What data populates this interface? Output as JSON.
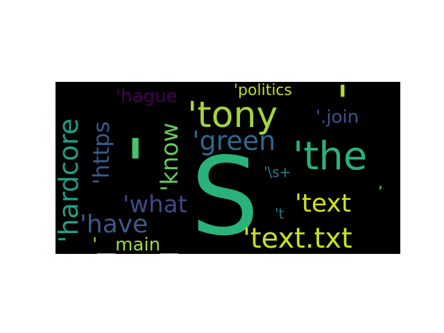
{
  "word_cloud": {
    "words": [
      {
        "text": "S",
        "color": "#2ab27b"
      },
      {
        "text": "'tony",
        "color": "#a4d53a"
      },
      {
        "text": "'the",
        "color": "#2bb07f"
      },
      {
        "text": "'",
        "color": "#47c16e"
      },
      {
        "text": "'",
        "color": "#b5de2b"
      },
      {
        "text": "'green",
        "color": "#31688e"
      },
      {
        "text": "'know",
        "color": "#65cb5e"
      },
      {
        "text": "'https",
        "color": "#365c8d"
      },
      {
        "text": "'hardcore",
        "color": "#1fa187"
      },
      {
        "text": "'hague",
        "color": "#440154"
      },
      {
        "text": "'politics",
        "color": "#bddf26"
      },
      {
        "text": "'.join",
        "color": "#3b528b"
      },
      {
        "text": "'\\s+",
        "color": "#277f8e"
      },
      {
        "text": "'what",
        "color": "#3e4a89"
      },
      {
        "text": "'text",
        "color": "#d2e21b"
      },
      {
        "text": "'have",
        "color": "#3b5b8c"
      },
      {
        "text": "'t",
        "color": "#2a788e"
      },
      {
        "text": "'__main__",
        "color": "#a0da39"
      },
      {
        "text": "'text.txt",
        "color": "#c8e020"
      },
      {
        "text": ",",
        "color": "#7ad151"
      }
    ]
  }
}
